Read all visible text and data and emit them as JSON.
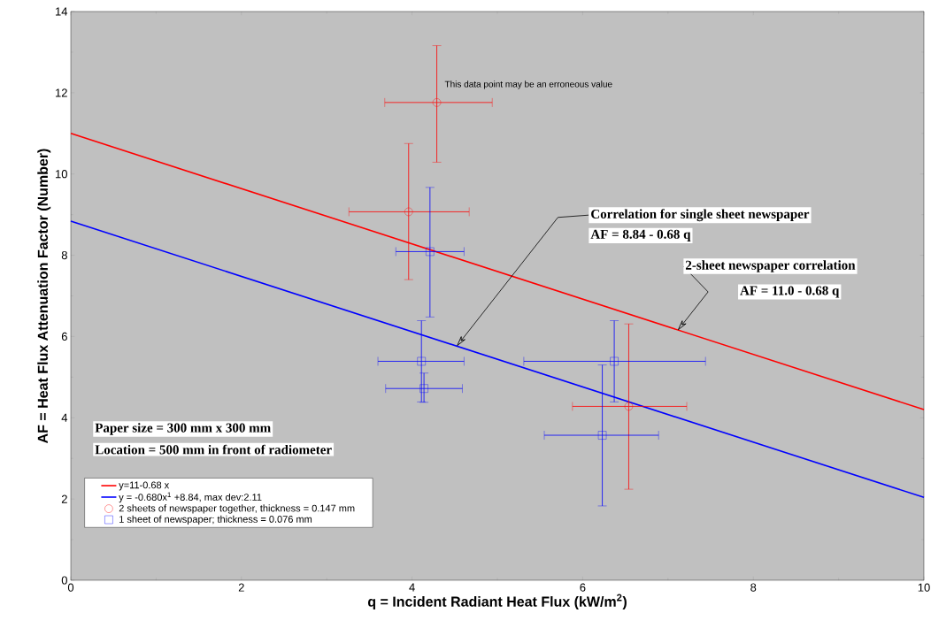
{
  "chart_data": {
    "type": "scatter",
    "xlabel": "q =   Incident Radiant Heat Flux  (kW/m$^{2}$)",
    "ylabel": "AF =  Heat Flux Attenuation Factor (Number)",
    "xlim": [
      0,
      10
    ],
    "ylim": [
      0,
      14
    ],
    "xticks": [
      0,
      2,
      4,
      6,
      8,
      10
    ],
    "yticks": [
      0,
      2,
      4,
      6,
      8,
      10,
      12,
      14
    ],
    "grid": false,
    "legend": "bottom left",
    "series": [
      {
        "name": "y=11-0.68 x",
        "type": "line",
        "color": "#ff0000",
        "x": [
          0,
          10
        ],
        "values": [
          11,
          4.2
        ],
        "marker": "none"
      },
      {
        "name": "y = -0.680x$^{1}$ +8.84, max dev:2.11",
        "type": "line",
        "color": "#0000ff",
        "x": [
          0,
          10
        ],
        "values": [
          8.84,
          2.04
        ],
        "marker": "none"
      },
      {
        "name": "2 sheets of newspaper together, thickness = 0.147 mm",
        "color": "#ff0000",
        "marker": "circle",
        "x": [
          4.29,
          3.96,
          6.54
        ],
        "values": [
          11.76,
          9.07,
          4.28
        ],
        "errors": [
          [
            10.29,
            13.16
          ],
          [
            7.4,
            10.75
          ],
          [
            2.24,
            6.31
          ]
        ],
        "xerrors": [
          [
            3.68,
            4.94
          ],
          [
            3.26,
            4.67
          ],
          [
            5.88,
            7.22
          ]
        ]
      },
      {
        "name": "1 sheet of newspaper; thickness = 0.076 mm",
        "color": "#0000ff",
        "marker": "square",
        "x": [
          4.21,
          4.11,
          4.14,
          6.37,
          6.23
        ],
        "values": [
          8.09,
          5.39,
          4.72,
          5.39,
          3.57
        ],
        "errors": [
          [
            6.48,
            9.67
          ],
          [
            4.39,
            6.39
          ],
          [
            4.38,
            5.1
          ],
          [
            4.39,
            6.39
          ],
          [
            1.83,
            5.3
          ]
        ],
        "xerrors": [
          [
            3.81,
            4.61
          ],
          [
            3.6,
            4.61
          ],
          [
            3.69,
            4.59
          ],
          [
            5.31,
            7.44
          ],
          [
            5.55,
            6.89
          ]
        ]
      }
    ],
    "annotations": [
      "This data point may be an erroneous value",
      {
        "text": "Correlation for single sheet newspaper",
        "x": 4.52,
        "y": 5.75
      },
      "AF = 8.84 - 0.68  q",
      {
        "text": "2-sheet newspaper correlation",
        "x": 7.11,
        "y": 6.14
      },
      "AF = 11.0 - 0.68  q",
      "Paper size = 300 mm   x   300 mm",
      "Location  =  500 mm in front of radiometer"
    ]
  }
}
